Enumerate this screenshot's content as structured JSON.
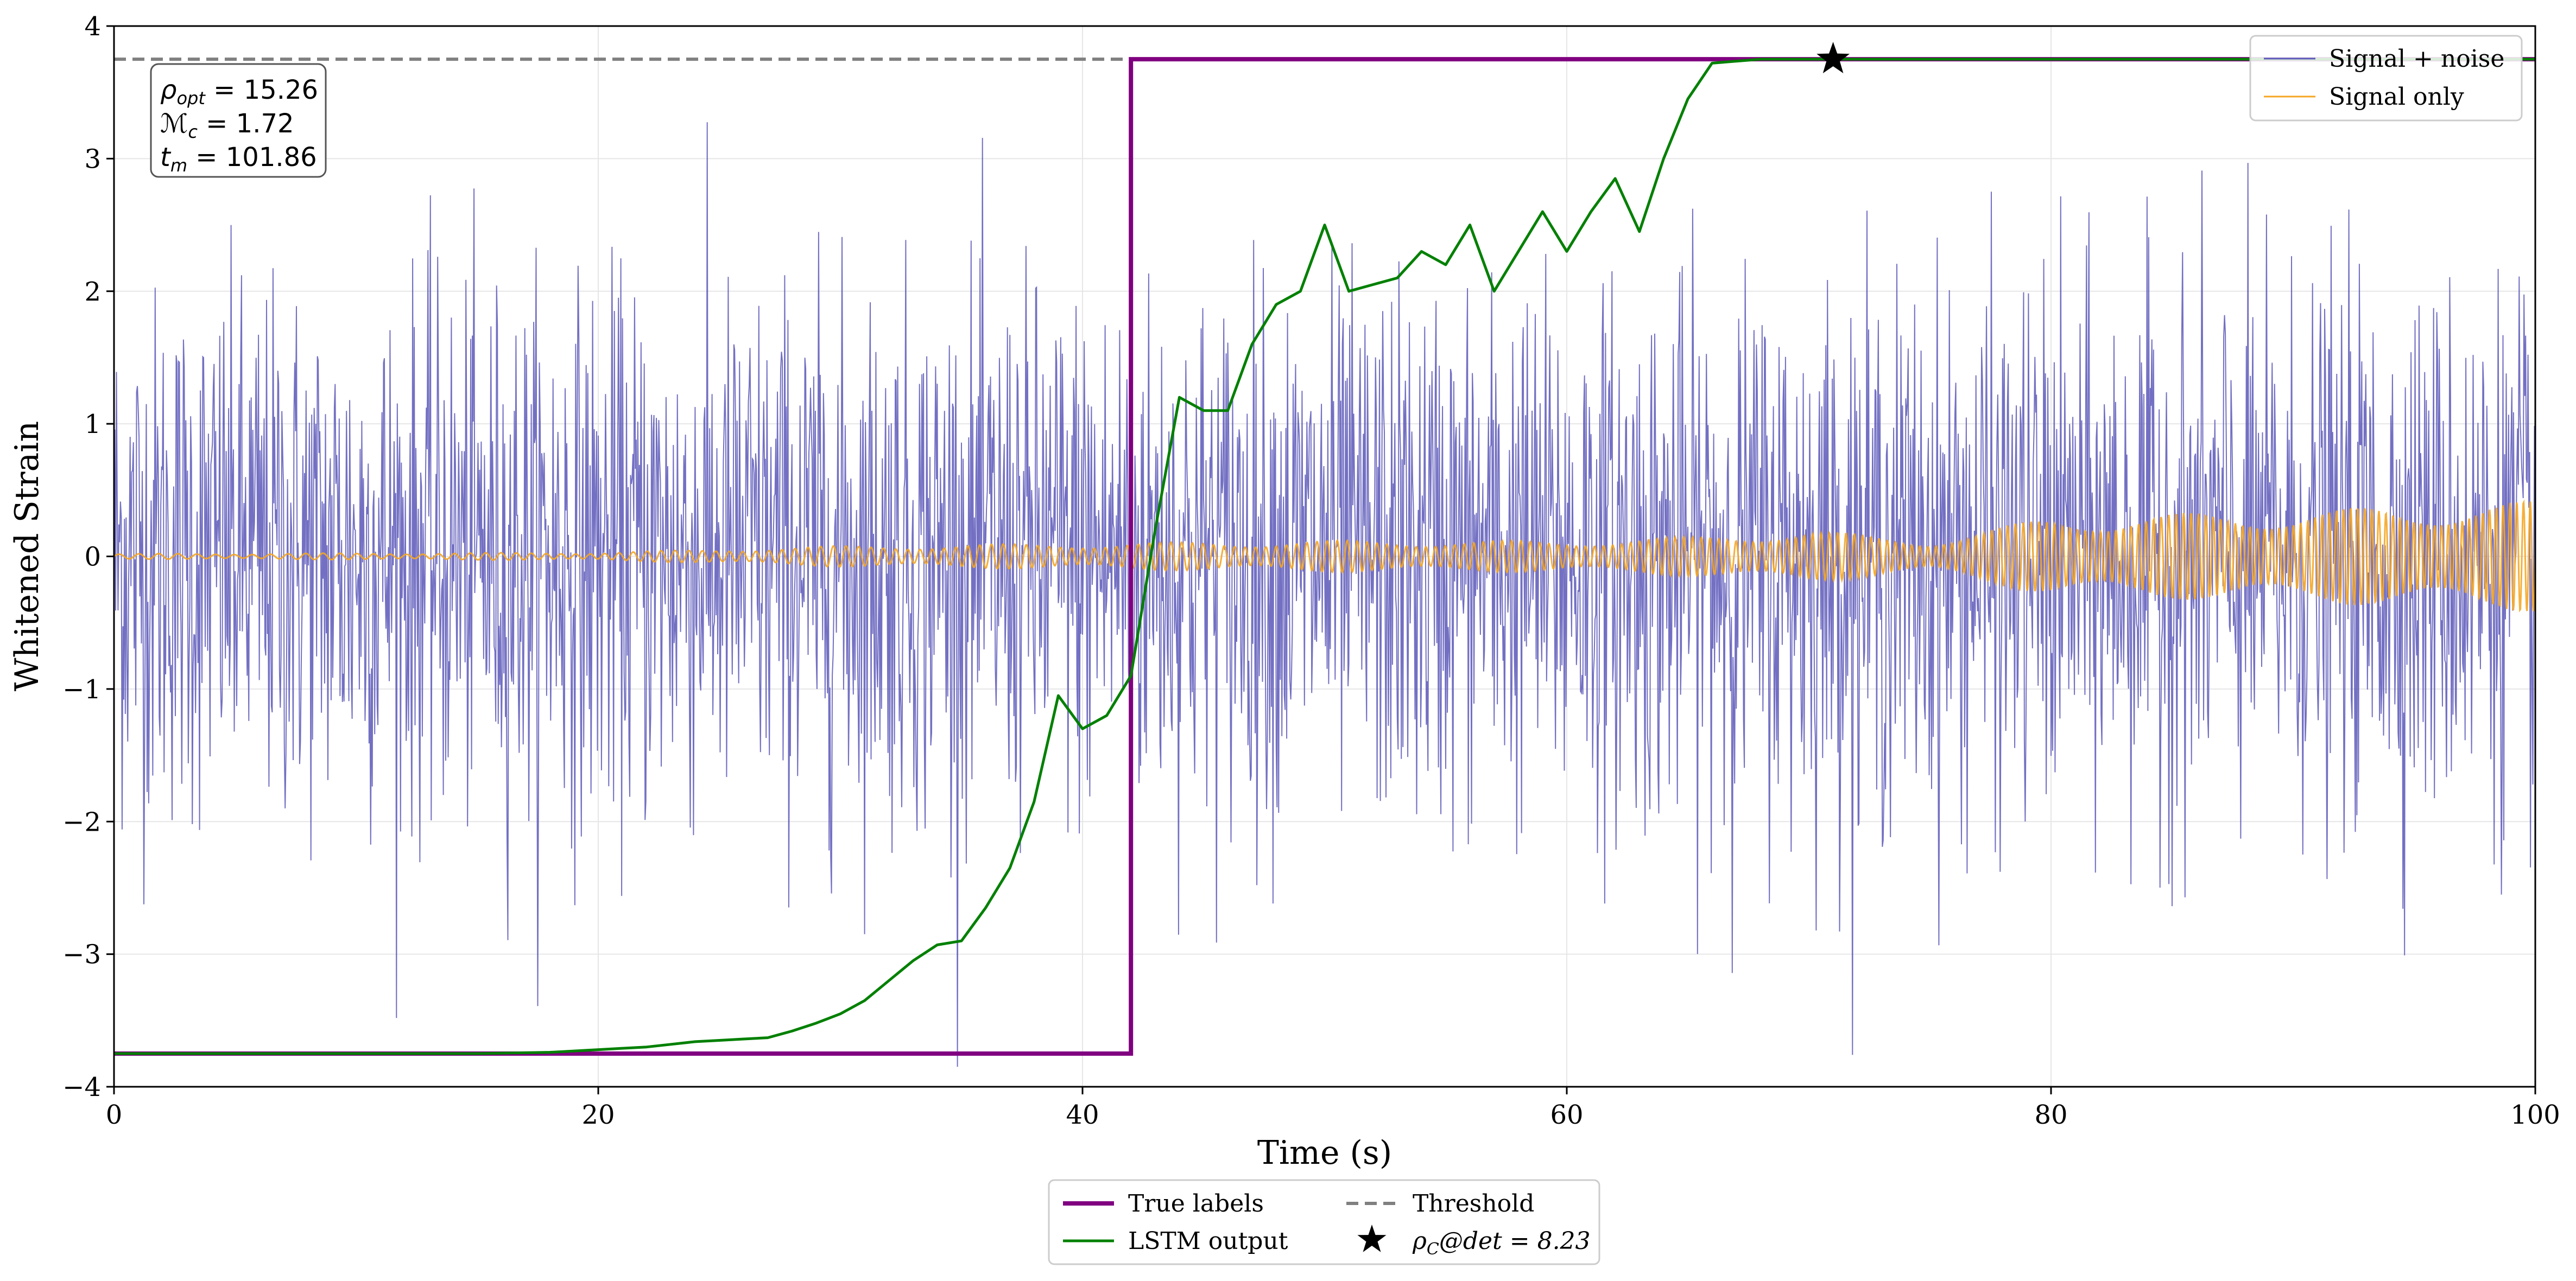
{
  "chart_data": {
    "type": "line",
    "title": "",
    "xlabel": "Time (s)",
    "ylabel": "Whitened Strain",
    "xlim": [
      0,
      100
    ],
    "ylim": [
      -4,
      4
    ],
    "x_ticks": [
      0,
      20,
      40,
      60,
      80,
      100
    ],
    "x_tick_labels": [
      "0",
      "20",
      "40",
      "60",
      "80",
      "100"
    ],
    "y_ticks": [
      -4,
      -3,
      -2,
      -1,
      0,
      1,
      2,
      3,
      4
    ],
    "y_tick_labels": [
      "−4",
      "−3",
      "−2",
      "−1",
      "0",
      "1",
      "2",
      "3",
      "4"
    ],
    "grid": true,
    "annotation": {
      "lines": [
        {
          "sym": "ρ",
          "sub": "opt",
          "rest": " = 15.26"
        },
        {
          "sym": "ℳ",
          "sub": "c",
          "rest": " = 1.72"
        },
        {
          "sym": "t",
          "sub": "m",
          "rest": " = 101.86"
        }
      ],
      "placement": "top-left"
    },
    "threshold": {
      "name": "Threshold",
      "value": 3.75,
      "color": "#808080",
      "style": "dashed"
    },
    "detection_marker": {
      "name_sym": "ρ",
      "name_sub": "C",
      "name_rest": "@det = 8.23",
      "x": 71,
      "y": 3.75,
      "marker": "star",
      "color": "#000000"
    },
    "series": [
      {
        "name": "Signal + noise",
        "color": "#5b57b8",
        "kind": "noise",
        "description": "whitened strain, white noise with std about 1, spikes up to about ±3.8",
        "noise_std": 1.0
      },
      {
        "name": "Signal only",
        "color": "#f5a623",
        "kind": "chirp",
        "envelope": [
          [
            0,
            0.02
          ],
          [
            20,
            0.03
          ],
          [
            30,
            0.08
          ],
          [
            40,
            0.1
          ],
          [
            50,
            0.12
          ],
          [
            60,
            0.12
          ],
          [
            65,
            0.15
          ],
          [
            70,
            0.2
          ],
          [
            75,
            0.12
          ],
          [
            80,
            0.3
          ],
          [
            90,
            0.35
          ],
          [
            100,
            0.42
          ]
        ]
      },
      {
        "name": "True labels",
        "color": "#800080",
        "kind": "step",
        "x": [
          0,
          42,
          42,
          100
        ],
        "y": [
          -3.75,
          -3.75,
          3.75,
          3.75
        ]
      },
      {
        "name": "LSTM output",
        "color": "#008000",
        "kind": "line",
        "x": [
          0,
          10,
          15,
          18,
          20,
          21,
          22,
          23,
          24,
          25,
          26,
          27,
          28,
          29,
          30,
          31,
          32,
          33,
          34,
          35,
          36,
          37,
          38,
          39,
          40,
          41,
          42,
          43,
          44,
          45,
          46,
          47,
          48,
          49,
          50,
          51,
          52,
          53,
          54,
          55,
          56,
          57,
          58,
          59,
          60,
          61,
          62,
          63,
          64,
          65,
          66,
          68,
          71,
          100
        ],
        "y": [
          -3.75,
          -3.75,
          -3.75,
          -3.74,
          -3.72,
          -3.71,
          -3.7,
          -3.68,
          -3.66,
          -3.65,
          -3.64,
          -3.63,
          -3.58,
          -3.52,
          -3.45,
          -3.35,
          -3.2,
          -3.05,
          -2.93,
          -2.9,
          -2.65,
          -2.35,
          -1.85,
          -1.05,
          -1.3,
          -1.2,
          -0.9,
          0.2,
          1.2,
          1.1,
          1.1,
          1.6,
          1.9,
          2.0,
          2.5,
          2.0,
          2.05,
          2.1,
          2.3,
          2.2,
          2.5,
          2.0,
          2.3,
          2.6,
          2.3,
          2.6,
          2.85,
          2.45,
          3.0,
          3.45,
          3.72,
          3.75,
          3.75,
          3.75
        ]
      }
    ],
    "legend_top": {
      "placement": "top-right",
      "entries": [
        "Signal + noise",
        "Signal only"
      ]
    },
    "legend_bottom": {
      "placement": "bottom-center",
      "entries": [
        "True labels",
        "LSTM output",
        "Threshold",
        "ρC@det = 8.23"
      ]
    }
  }
}
